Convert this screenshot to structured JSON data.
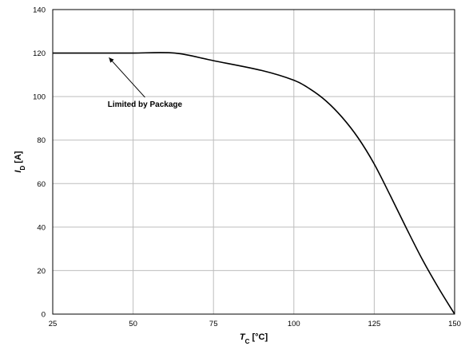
{
  "chart_data": {
    "type": "line",
    "title": "",
    "xlabel": {
      "main": "T",
      "sub": "C",
      "unit": " [°C]"
    },
    "ylabel": {
      "main": "I",
      "sub": "D",
      "unit": " [A]"
    },
    "xlim": [
      25,
      150
    ],
    "ylim": [
      0,
      140
    ],
    "xticks": [
      25,
      50,
      75,
      100,
      125,
      150
    ],
    "yticks": [
      0,
      20,
      40,
      60,
      80,
      100,
      120,
      140
    ],
    "grid": true,
    "series": [
      {
        "x": [
          25,
          40,
          50,
          63,
          75,
          90,
          100,
          105,
          110,
          115,
          120,
          125,
          130,
          135,
          140,
          145,
          150
        ],
        "y": [
          120,
          120,
          120,
          120,
          116.5,
          112,
          107.5,
          103.5,
          98,
          90.5,
          81,
          69,
          54.5,
          39.5,
          25,
          12,
          0
        ]
      }
    ],
    "annotations": [
      {
        "text": "Limited by Package",
        "text_x": 42,
        "text_y": 96,
        "arrow_to_x": 42.5,
        "arrow_to_y": 119
      }
    ]
  }
}
